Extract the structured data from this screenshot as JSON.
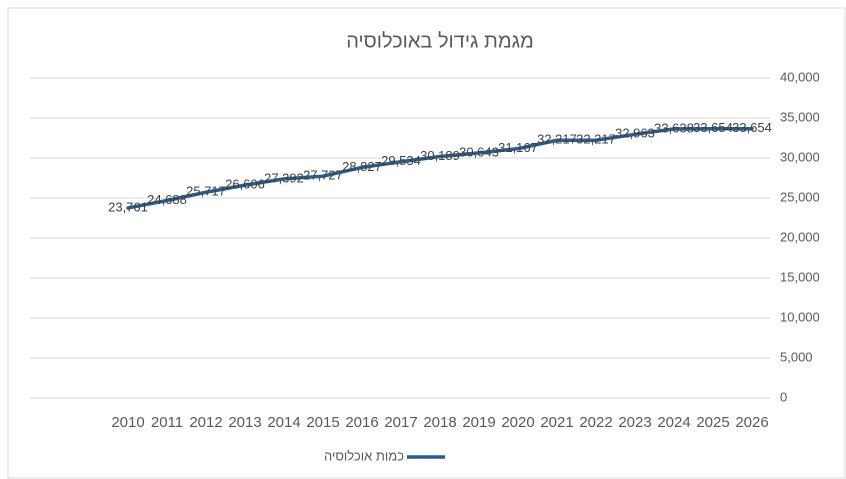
{
  "chart_data": {
    "type": "line",
    "title": "מגמת גידול באוכלוסיה",
    "categories": [
      "2010",
      "2011",
      "2012",
      "2013",
      "2014",
      "2015",
      "2016",
      "2017",
      "2018",
      "2019",
      "2020",
      "2021",
      "2022",
      "2023",
      "2024",
      "2025",
      "2026"
    ],
    "series": [
      {
        "name": "כמות אוכלוסיה",
        "color": "#2a5d8c",
        "values": [
          23761,
          24688,
          25717,
          26606,
          27392,
          27727,
          28827,
          29534,
          30189,
          30643,
          31167,
          32217,
          32217,
          32963,
          33638,
          33654,
          33654
        ],
        "value_labels": [
          "23,761",
          "24,688",
          "25,717",
          "26,606",
          "27,392",
          "27,727",
          "28,827",
          "29,534",
          "30,189",
          "30,643",
          "31,167",
          "32,217",
          "32,217",
          "32,963",
          "33,638",
          "33,654",
          "33,654"
        ]
      }
    ],
    "ylim": [
      0,
      40000
    ],
    "yticks": [
      0,
      {
        "value": 5000,
        "label": "5,000"
      },
      {
        "value": 10000,
        "label": "10,000"
      },
      {
        "value": 15000,
        "label": "15,000"
      },
      {
        "value": 20000,
        "label": "20,000"
      },
      {
        "value": 25000,
        "label": "25,000"
      },
      {
        "value": 30000,
        "label": "30,000"
      },
      {
        "value": 35000,
        "label": "35,000"
      },
      {
        "value": 40000,
        "label": "40,000"
      }
    ],
    "grid": true,
    "legend": "bottom"
  }
}
